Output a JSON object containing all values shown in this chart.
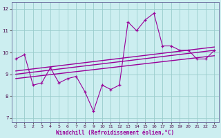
{
  "xlabel": "Windchill (Refroidissement éolien,°C)",
  "ylabel": "",
  "background_color": "#cceef0",
  "line_color": "#990099",
  "grid_color": "#99cccc",
  "xlim": [
    -0.5,
    23.5
  ],
  "ylim": [
    6.8,
    12.3
  ],
  "xticks": [
    0,
    1,
    2,
    3,
    4,
    5,
    6,
    7,
    8,
    9,
    10,
    11,
    12,
    13,
    14,
    15,
    16,
    17,
    18,
    19,
    20,
    21,
    22,
    23
  ],
  "yticks": [
    7,
    8,
    9,
    10,
    11,
    12
  ],
  "hours": [
    0,
    1,
    2,
    3,
    4,
    5,
    6,
    7,
    8,
    9,
    10,
    11,
    12,
    13,
    14,
    15,
    16,
    17,
    18,
    19,
    20,
    21,
    22,
    23
  ],
  "windchill": [
    9.7,
    9.9,
    8.5,
    8.6,
    9.3,
    8.6,
    8.8,
    8.9,
    8.2,
    7.3,
    8.5,
    8.3,
    8.5,
    11.4,
    11.0,
    11.5,
    11.8,
    10.3,
    10.3,
    10.1,
    10.1,
    9.7,
    9.7,
    10.1
  ],
  "reg1_start": 8.8,
  "reg1_end": 9.85,
  "reg2_start": 9.0,
  "reg2_end": 10.1,
  "reg3_start": 9.15,
  "reg3_end": 10.25
}
